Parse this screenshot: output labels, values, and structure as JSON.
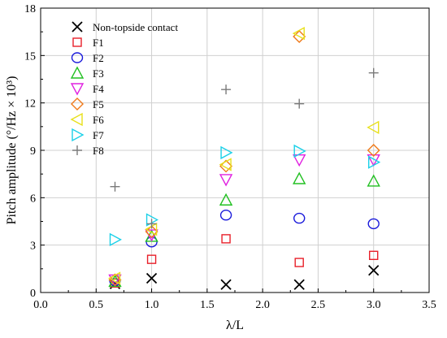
{
  "chart_data": {
    "type": "scatter",
    "title": "",
    "xlabel": "λ/L",
    "ylabel": "Pitch amplitude (°/Hz × 10³)",
    "xlim": [
      0.0,
      3.5
    ],
    "ylim": [
      0,
      18
    ],
    "xticks": [
      "0.0",
      "0.5",
      "1.0",
      "1.5",
      "2.0",
      "2.5",
      "3.0",
      "3.5"
    ],
    "yticks": [
      "0",
      "3",
      "6",
      "9",
      "12",
      "15",
      "18"
    ],
    "grid": true,
    "legend_position": "top-left",
    "series": [
      {
        "name": "Non-topside contact",
        "marker": "x",
        "color": "#000000",
        "points": [
          [
            0.67,
            0.55
          ],
          [
            1.0,
            0.9
          ],
          [
            1.67,
            0.5
          ],
          [
            2.33,
            0.5
          ],
          [
            3.0,
            1.4
          ]
        ]
      },
      {
        "name": "F1",
        "marker": "square",
        "color": "#e8202a",
        "points": [
          [
            0.67,
            0.6
          ],
          [
            1.0,
            2.1
          ],
          [
            1.67,
            3.4
          ],
          [
            2.33,
            1.9
          ],
          [
            3.0,
            2.35
          ]
        ]
      },
      {
        "name": "F2",
        "marker": "circle",
        "color": "#1a1adb",
        "points": [
          [
            0.67,
            0.75
          ],
          [
            1.0,
            3.2
          ],
          [
            1.67,
            4.9
          ],
          [
            2.33,
            4.7
          ],
          [
            3.0,
            4.35
          ]
        ]
      },
      {
        "name": "F3",
        "marker": "triangle-up",
        "color": "#22c022",
        "points": [
          [
            0.67,
            0.7
          ],
          [
            1.0,
            3.55
          ],
          [
            1.67,
            5.85
          ],
          [
            2.33,
            7.2
          ],
          [
            3.0,
            7.05
          ]
        ]
      },
      {
        "name": "F4",
        "marker": "triangle-down",
        "color": "#e020e0",
        "points": [
          [
            0.67,
            0.8
          ],
          [
            1.0,
            3.65
          ],
          [
            1.67,
            7.15
          ],
          [
            2.33,
            8.4
          ],
          [
            3.0,
            8.4
          ]
        ]
      },
      {
        "name": "F5",
        "marker": "diamond",
        "color": "#f07a1a",
        "points": [
          [
            0.67,
            0.8
          ],
          [
            1.0,
            3.85
          ],
          [
            1.67,
            8.0
          ],
          [
            2.33,
            16.2
          ],
          [
            3.0,
            9.0
          ]
        ]
      },
      {
        "name": "F6",
        "marker": "triangle-left",
        "color": "#e8e01a",
        "points": [
          [
            0.67,
            0.9
          ],
          [
            1.0,
            4.0
          ],
          [
            1.67,
            8.1
          ],
          [
            2.33,
            16.4
          ],
          [
            3.0,
            10.45
          ]
        ]
      },
      {
        "name": "F7",
        "marker": "triangle-right",
        "color": "#1ad0e8",
        "points": [
          [
            0.67,
            3.35
          ],
          [
            1.0,
            4.6
          ],
          [
            1.67,
            8.85
          ],
          [
            2.33,
            8.95
          ],
          [
            3.0,
            8.25
          ]
        ]
      },
      {
        "name": "F8",
        "marker": "plus",
        "color": "#7a7a7a",
        "points": [
          [
            0.67,
            6.7
          ],
          [
            1.0,
            4.35
          ],
          [
            1.67,
            12.85
          ],
          [
            2.33,
            11.95
          ],
          [
            3.0,
            13.9
          ]
        ]
      }
    ]
  }
}
